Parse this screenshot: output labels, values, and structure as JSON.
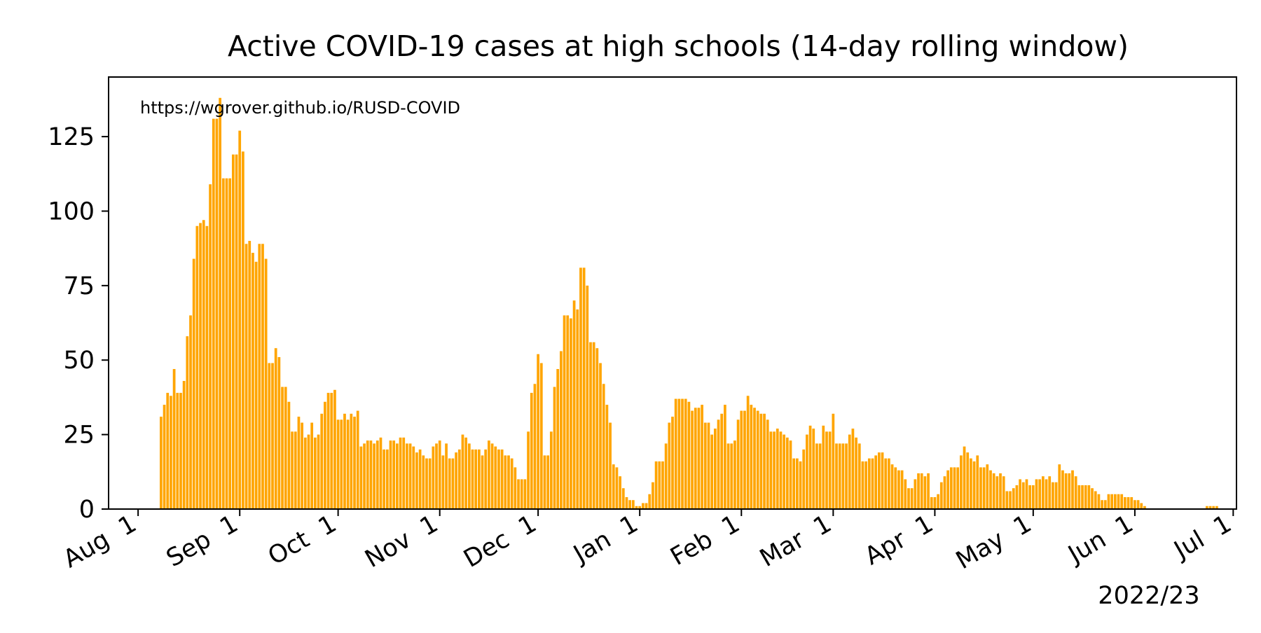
{
  "chart_data": {
    "type": "bar",
    "title": "Active COVID-19 cases at high schools (14-day rolling window)",
    "annotation": "https://wgrover.github.io/RUSD-COVID",
    "xlabel": "2022/23",
    "ylabel": "",
    "grid": false,
    "colors": {
      "bar": "#FFA500",
      "axis": "#000000",
      "background": "#ffffff"
    },
    "x_range": [
      "2022-07-23",
      "2023-07-02"
    ],
    "ylim": [
      0,
      145
    ],
    "y_ticks": [
      {
        "value": 0,
        "label": "0"
      },
      {
        "value": 25,
        "label": "25"
      },
      {
        "value": 50,
        "label": "50"
      },
      {
        "value": 75,
        "label": "75"
      },
      {
        "value": 100,
        "label": "100"
      },
      {
        "value": 125,
        "label": "125"
      }
    ],
    "x_ticks": [
      {
        "date": "2022-08-01",
        "label": "Aug  1"
      },
      {
        "date": "2022-09-01",
        "label": "Sep  1"
      },
      {
        "date": "2022-10-01",
        "label": "Oct  1"
      },
      {
        "date": "2022-11-01",
        "label": "Nov  1"
      },
      {
        "date": "2022-12-01",
        "label": "Dec  1"
      },
      {
        "date": "2023-01-01",
        "label": "Jan  1"
      },
      {
        "date": "2023-02-01",
        "label": "Feb  1"
      },
      {
        "date": "2023-03-01",
        "label": "Mar  1"
      },
      {
        "date": "2023-04-01",
        "label": "Apr  1"
      },
      {
        "date": "2023-05-01",
        "label": "May  1"
      },
      {
        "date": "2023-06-01",
        "label": "Jun  1"
      },
      {
        "date": "2023-07-01",
        "label": "Jul  1"
      }
    ],
    "start_date": "2022-08-08",
    "values": [
      31,
      35,
      39,
      38,
      47,
      39,
      39,
      43,
      58,
      65,
      84,
      95,
      96,
      97,
      95,
      109,
      131,
      131,
      138,
      111,
      111,
      111,
      119,
      119,
      127,
      120,
      89,
      90,
      86,
      83,
      89,
      89,
      84,
      49,
      49,
      54,
      51,
      41,
      41,
      36,
      26,
      26,
      31,
      29,
      24,
      25,
      29,
      24,
      25,
      32,
      36,
      39,
      39,
      40,
      30,
      30,
      32,
      30,
      32,
      31,
      33,
      21,
      22,
      23,
      23,
      22,
      23,
      24,
      20,
      20,
      23,
      23,
      22,
      24,
      24,
      22,
      22,
      21,
      19,
      20,
      18,
      17,
      17,
      21,
      22,
      23,
      18,
      22,
      17,
      17,
      19,
      20,
      25,
      24,
      22,
      20,
      20,
      20,
      18,
      20,
      23,
      22,
      21,
      20,
      20,
      18,
      18,
      17,
      14,
      10,
      10,
      10,
      26,
      39,
      42,
      52,
      49,
      18,
      18,
      26,
      41,
      47,
      53,
      65,
      65,
      64,
      70,
      67,
      81,
      81,
      75,
      56,
      56,
      54,
      49,
      42,
      35,
      29,
      15,
      14,
      11,
      7,
      4,
      3,
      3,
      1,
      1,
      2,
      2,
      5,
      9,
      16,
      16,
      16,
      22,
      29,
      31,
      37,
      37,
      37,
      37,
      36,
      33,
      34,
      34,
      35,
      29,
      29,
      25,
      27,
      30,
      32,
      35,
      22,
      22,
      23,
      30,
      33,
      33,
      38,
      35,
      34,
      33,
      32,
      32,
      30,
      26,
      26,
      27,
      26,
      25,
      24,
      23,
      17,
      17,
      16,
      20,
      25,
      28,
      27,
      22,
      22,
      28,
      26,
      26,
      32,
      22,
      22,
      22,
      22,
      25,
      27,
      24,
      22,
      16,
      16,
      17,
      17,
      18,
      19,
      19,
      17,
      17,
      15,
      14,
      13,
      13,
      10,
      7,
      7,
      10,
      12,
      12,
      11,
      12,
      4,
      4,
      5,
      9,
      11,
      13,
      14,
      14,
      14,
      18,
      21,
      19,
      17,
      16,
      18,
      14,
      14,
      15,
      13,
      12,
      11,
      12,
      11,
      6,
      6,
      7,
      8,
      10,
      9,
      10,
      8,
      8,
      10,
      10,
      11,
      10,
      11,
      9,
      9,
      15,
      13,
      12,
      12,
      13,
      11,
      8,
      8,
      8,
      8,
      7,
      6,
      5,
      3,
      3,
      5,
      5,
      5,
      5,
      5,
      4,
      4,
      4,
      3,
      3,
      2,
      1,
      0,
      0,
      0,
      0,
      0,
      0,
      0,
      0,
      0,
      0,
      0,
      0,
      0,
      0,
      0,
      0,
      0,
      0,
      1,
      1,
      1,
      1
    ]
  }
}
